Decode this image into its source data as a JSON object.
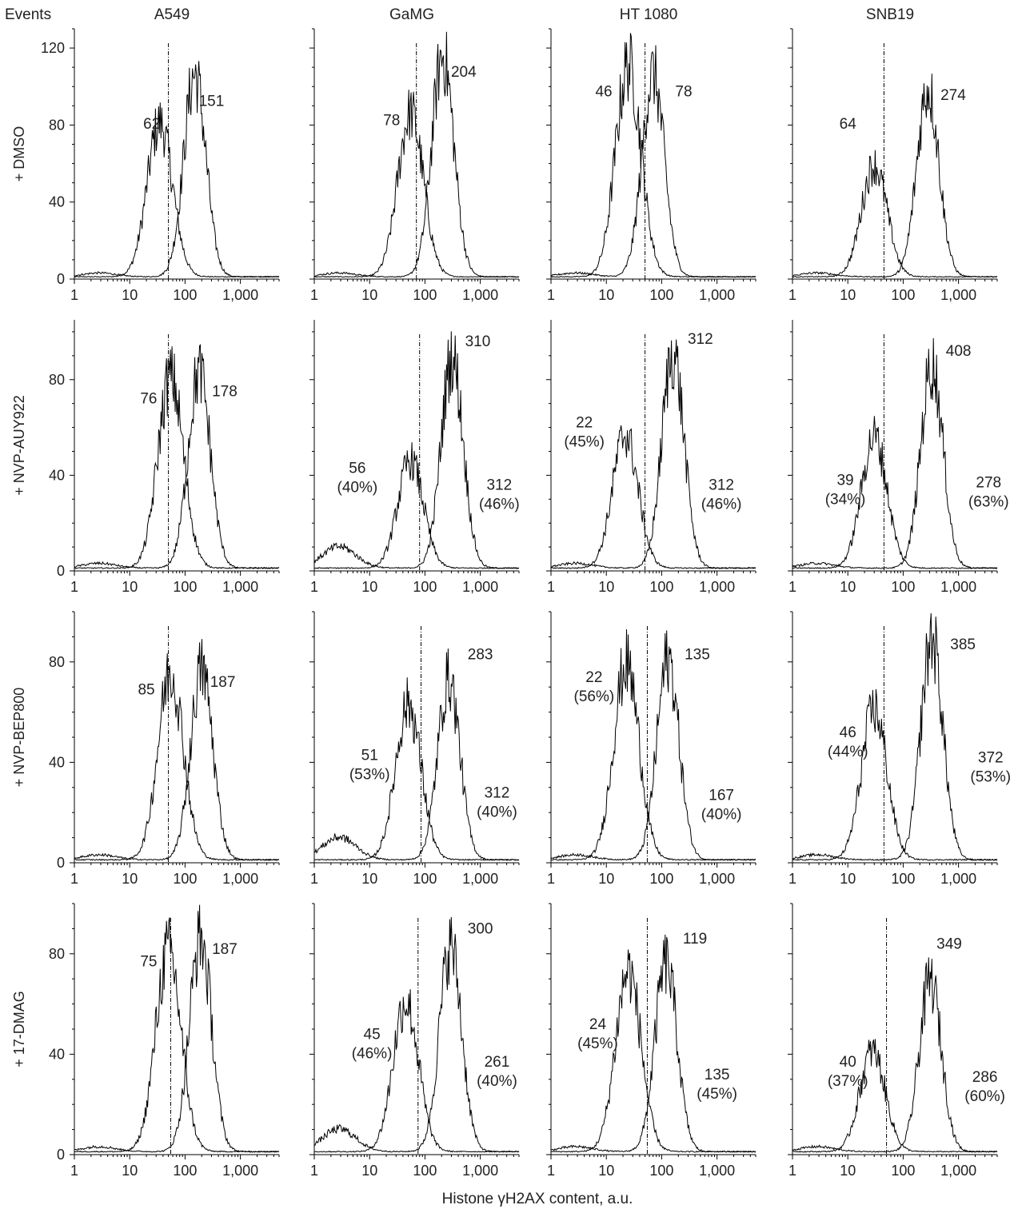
{
  "chart_data": {
    "type": "histogram-grid",
    "y_axis_title": "Events",
    "x_axis_title": "Histone γH2AX content, a.u.",
    "x_scale": "log",
    "xlim": [
      1,
      5000
    ],
    "x_tick_labels": [
      {
        "value": 1,
        "label": "1"
      },
      {
        "value": 10,
        "label": "10"
      },
      {
        "value": 100,
        "label": "100"
      },
      {
        "value": 1000,
        "label": "1,000"
      }
    ],
    "columns": [
      "A549",
      "GaMG",
      "HT 1080",
      "SNB19"
    ],
    "row_label_prefix": "+ ",
    "colors": {
      "control": "#b5b5b5",
      "treated": "#000000"
    },
    "rows": [
      {
        "label": "DMSO",
        "ylim": [
          0,
          130
        ],
        "y_ticks": [
          {
            "value": 0,
            "label": "0"
          },
          {
            "value": 40,
            "label": "40"
          },
          {
            "value": 80,
            "label": "80"
          },
          {
            "value": 120,
            "label": "120"
          }
        ],
        "panels": [
          {
            "cell": "A549",
            "gate": 50,
            "control": {
              "mode": 35,
              "peak": 80,
              "label": {
                "text": "62",
                "x": 25,
                "y": 78
              }
            },
            "treated": {
              "mode": 150,
              "peak": 105,
              "label": {
                "text": "151",
                "x": 300,
                "y": 90
              }
            }
          },
          {
            "cell": "GaMG",
            "gate": 70,
            "control": {
              "mode": 55,
              "peak": 85,
              "label": {
                "text": "78",
                "x": 25,
                "y": 80
              }
            },
            "treated": {
              "mode": 210,
              "peak": 115,
              "label": {
                "text": "204",
                "x": 500,
                "y": 105
              }
            }
          },
          {
            "cell": "HT 1080",
            "gate": 50,
            "control": {
              "mode": 25,
              "peak": 110,
              "label": {
                "text": "46",
                "x": 9,
                "y": 95
              }
            },
            "treated": {
              "mode": 70,
              "peak": 105,
              "label": {
                "text": "78",
                "x": 250,
                "y": 95
              }
            }
          },
          {
            "cell": "SNB19",
            "gate": 45,
            "control": {
              "mode": 30,
              "peak": 58,
              "label": {
                "text": "64",
                "x": 10,
                "y": 78
              }
            },
            "treated": {
              "mode": 280,
              "peak": 98,
              "label": {
                "text": "274",
                "x": 800,
                "y": 93
              }
            }
          }
        ]
      },
      {
        "label": "NVP-AUY922",
        "ylim": [
          0,
          105
        ],
        "y_ticks": [
          {
            "value": 0,
            "label": "0"
          },
          {
            "value": 40,
            "label": "40"
          },
          {
            "value": 80,
            "label": "80"
          }
        ],
        "panels": [
          {
            "cell": "A549",
            "gate": 50,
            "control": {
              "mode": 55,
              "peak": 80,
              "label": {
                "text": "76",
                "x": 22,
                "y": 70
              }
            },
            "treated": {
              "mode": 180,
              "peak": 82,
              "label": {
                "text": "178",
                "x": 520,
                "y": 73
              }
            }
          },
          {
            "cell": "GaMG",
            "gate": 80,
            "control": {
              "mode": 55,
              "peak": 45,
              "label": {
                "text": "56",
                "x": 6,
                "y": 41,
                "pct": "(40%)"
              }
            },
            "treated": {
              "mode": 310,
              "peak": 88,
              "label": {
                "text": "310",
                "x": 900,
                "y": 94,
                "alt": "312",
                "alt_pct": "(46%)",
                "alt_x": 2200,
                "alt_y": 34
              }
            }
          },
          {
            "cell": "HT 1080",
            "gate": 50,
            "control": {
              "mode": 22,
              "peak": 56,
              "label": {
                "text": "22",
                "x": 4,
                "y": 60,
                "pct": "(45%)"
              }
            },
            "treated": {
              "mode": 160,
              "peak": 90,
              "label": {
                "text": "312",
                "x": 500,
                "y": 95,
                "alt": "312",
                "alt_pct": "(46%)",
                "alt_x": 1200,
                "alt_y": 34
              }
            }
          },
          {
            "cell": "SNB19",
            "gate": 45,
            "control": {
              "mode": 30,
              "peak": 55,
              "label": {
                "text": "39",
                "x": 9,
                "y": 36,
                "pct": "(34%)"
              }
            },
            "treated": {
              "mode": 330,
              "peak": 85,
              "label": {
                "text": "408",
                "x": 1000,
                "y": 90,
                "alt": "278",
                "alt_pct": "(63%)",
                "alt_x": 3500,
                "alt_y": 35
              }
            }
          }
        ]
      },
      {
        "label": "NVP-BEP800",
        "ylim": [
          0,
          100
        ],
        "y_ticks": [
          {
            "value": 0,
            "label": "0"
          },
          {
            "value": 40,
            "label": "40"
          },
          {
            "value": 80,
            "label": "80"
          }
        ],
        "panels": [
          {
            "cell": "A549",
            "gate": 50,
            "control": {
              "mode": 55,
              "peak": 75,
              "label": {
                "text": "85",
                "x": 20,
                "y": 67
              }
            },
            "treated": {
              "mode": 200,
              "peak": 76,
              "label": {
                "text": "187",
                "x": 480,
                "y": 70
              }
            }
          },
          {
            "cell": "GaMG",
            "gate": 85,
            "control": {
              "mode": 50,
              "peak": 62,
              "label": {
                "text": "51",
                "x": 10,
                "y": 41,
                "pct": "(53%)"
              }
            },
            "treated": {
              "mode": 270,
              "peak": 72,
              "label": {
                "text": "283",
                "x": 1000,
                "y": 81,
                "alt": "312",
                "alt_pct": "(40%)",
                "alt_x": 2000,
                "alt_y": 26
              }
            }
          },
          {
            "cell": "HT 1080",
            "gate": 55,
            "control": {
              "mode": 23,
              "peak": 78,
              "label": {
                "text": "22",
                "x": 6,
                "y": 72,
                "pct": "(56%)"
              }
            },
            "treated": {
              "mode": 130,
              "peak": 80,
              "label": {
                "text": "135",
                "x": 440,
                "y": 81,
                "alt": "167",
                "alt_pct": "(40%)",
                "alt_x": 1200,
                "alt_y": 25
              }
            }
          },
          {
            "cell": "SNB19",
            "gate": 45,
            "control": {
              "mode": 30,
              "peak": 60,
              "label": {
                "text": "46",
                "x": 10,
                "y": 50,
                "pct": "(44%)"
              }
            },
            "treated": {
              "mode": 330,
              "peak": 88,
              "label": {
                "text": "385",
                "x": 1200,
                "y": 85,
                "alt": "372",
                "alt_pct": "(53%)",
                "alt_x": 3800,
                "alt_y": 40
              }
            }
          }
        ]
      },
      {
        "label": "17-DMAG",
        "ylim": [
          0,
          100
        ],
        "y_ticks": [
          {
            "value": 0,
            "label": "0"
          },
          {
            "value": 40,
            "label": "40"
          },
          {
            "value": 80,
            "label": "80"
          }
        ],
        "panels": [
          {
            "cell": "A549",
            "gate": 55,
            "control": {
              "mode": 50,
              "peak": 80,
              "label": {
                "text": "75",
                "x": 22,
                "y": 75
              }
            },
            "treated": {
              "mode": 190,
              "peak": 85,
              "label": {
                "text": "187",
                "x": 520,
                "y": 80
              }
            }
          },
          {
            "cell": "GaMG",
            "gate": 75,
            "control": {
              "mode": 45,
              "peak": 60,
              "label": {
                "text": "45",
                "x": 11,
                "y": 46,
                "pct": "(46%)"
              }
            },
            "treated": {
              "mode": 290,
              "peak": 82,
              "label": {
                "text": "300",
                "x": 1000,
                "y": 88,
                "alt": "261",
                "alt_pct": "(40%)",
                "alt_x": 2000,
                "alt_y": 35
              }
            }
          },
          {
            "cell": "HT 1080",
            "gate": 55,
            "control": {
              "mode": 25,
              "peak": 72,
              "label": {
                "text": "24",
                "x": 7,
                "y": 50,
                "pct": "(45%)"
              }
            },
            "treated": {
              "mode": 120,
              "peak": 75,
              "label": {
                "text": "119",
                "x": 400,
                "y": 84,
                "alt": "135",
                "alt_pct": "(45%)",
                "alt_x": 1000,
                "alt_y": 30
              }
            }
          },
          {
            "cell": "SNB19",
            "gate": 50,
            "control": {
              "mode": 28,
              "peak": 40,
              "label": {
                "text": "40",
                "x": 10,
                "y": 35,
                "pct": "(37%)"
              }
            },
            "treated": {
              "mode": 310,
              "peak": 68,
              "label": {
                "text": "349",
                "x": 680,
                "y": 82,
                "alt": "286",
                "alt_pct": "(60%)",
                "alt_x": 3000,
                "alt_y": 29
              }
            }
          }
        ]
      }
    ]
  }
}
